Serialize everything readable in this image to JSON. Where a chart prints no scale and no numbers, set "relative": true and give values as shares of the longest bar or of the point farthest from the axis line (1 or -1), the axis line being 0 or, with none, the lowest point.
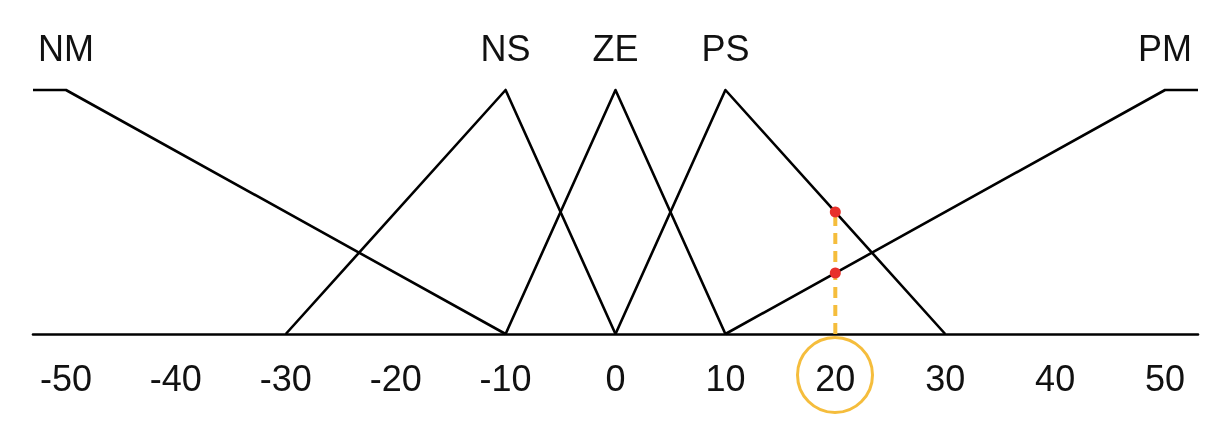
{
  "chart_data": {
    "type": "line",
    "relative": true,
    "xlim": [
      -53,
      53
    ],
    "xticks": [
      -50,
      -40,
      -30,
      -20,
      -10,
      0,
      10,
      20,
      30,
      40,
      50
    ],
    "grid": false,
    "legend": false,
    "marker": "none",
    "line_style": "solid",
    "series": [
      {
        "name": "NM",
        "color": "#000000",
        "x": [
          -53,
          -50,
          -10
        ],
        "values": [
          1,
          1,
          0
        ]
      },
      {
        "name": "NS",
        "color": "#000000",
        "x": [
          -30,
          -10,
          0
        ],
        "values": [
          0,
          1,
          0
        ]
      },
      {
        "name": "ZE",
        "color": "#000000",
        "x": [
          -10,
          0,
          10
        ],
        "values": [
          0,
          1,
          0
        ]
      },
      {
        "name": "PS",
        "color": "#000000",
        "x": [
          0,
          10,
          30
        ],
        "values": [
          0,
          1,
          0
        ]
      },
      {
        "name": "PM",
        "color": "#000000",
        "x": [
          10,
          50,
          53
        ],
        "values": [
          0,
          1,
          1
        ]
      },
      {
        "type": "line",
        "color": "#f5bd3c",
        "line_style": "dashed",
        "x": [
          20,
          20
        ],
        "values": [
          0,
          0.5
        ]
      },
      {
        "type": "scatter",
        "color": "#e8312a",
        "marker": "circle",
        "x": [
          20,
          20
        ],
        "values": [
          0.5,
          0.25
        ]
      }
    ]
  }
}
